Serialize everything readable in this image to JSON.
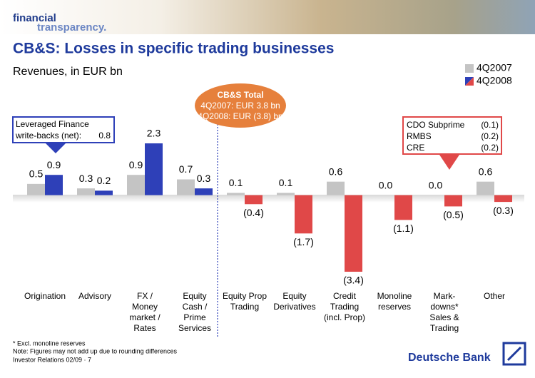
{
  "header": {
    "brand_line1": "financial",
    "brand_line2": "transparency."
  },
  "chart_data": {
    "type": "bar",
    "title": "CB&S: Losses in specific trading businesses",
    "subtitle": "Revenues, in EUR bn",
    "categories": [
      "Origination",
      "Advisory",
      "FX /\nMoney\nmarket /\nRates",
      "Equity\nCash /\nPrime\nServices",
      "Equity Prop\nTrading",
      "Equity\nDerivatives",
      "Credit\nTrading\n(incl. Prop)",
      "Monoline\nreserves",
      "Mark-\ndowns*\nSales &\nTrading",
      "Other"
    ],
    "series": [
      {
        "name": "4Q2007",
        "color": "#c4c4c4",
        "values": [
          0.5,
          0.3,
          0.9,
          0.7,
          0.1,
          0.1,
          0.6,
          0.0,
          0.0,
          0.6
        ],
        "value_labels": [
          "0.5",
          "0.3",
          "0.9",
          "0.7",
          "0.1",
          "0.1",
          "0.6",
          "0.0",
          "0.0",
          "0.6"
        ]
      },
      {
        "name": "4Q2008",
        "color": "#e04848",
        "colors": [
          "#2e40b8",
          "#2e40b8",
          "#2e40b8",
          "#2e40b8",
          "#e04848",
          "#e04848",
          "#e04848",
          "#e04848",
          "#e04848",
          "#e04848"
        ],
        "values": [
          0.9,
          0.2,
          2.3,
          0.3,
          -0.4,
          -1.7,
          -3.4,
          -1.1,
          -0.5,
          -0.3
        ],
        "value_labels": [
          "0.9",
          "0.2",
          "2.3",
          "0.3",
          "(0.4)",
          "(1.7)",
          "(3.4)",
          "(1.1)",
          "(0.5)",
          "(0.3)"
        ]
      }
    ],
    "total_callout": [
      "CB&S Total",
      "4Q2007: EUR 3.8 bn",
      "4Q2008: EUR (3.8) bn"
    ],
    "leveraged_note": {
      "line1": "Leveraged Finance",
      "line2": "write-backs (net):",
      "value": "0.8"
    },
    "cdo_note": [
      [
        "CDO Subprime",
        "(0.1)"
      ],
      [
        "RMBS",
        "(0.2)"
      ],
      [
        "CRE",
        "(0.2)"
      ]
    ]
  },
  "footer": {
    "footnote": "* Excl. monoline reserves",
    "note": "Note: Figures may not add up due to rounding differences",
    "source": "Investor Relations 02/09 · 7",
    "brand": "Deutsche Bank"
  }
}
